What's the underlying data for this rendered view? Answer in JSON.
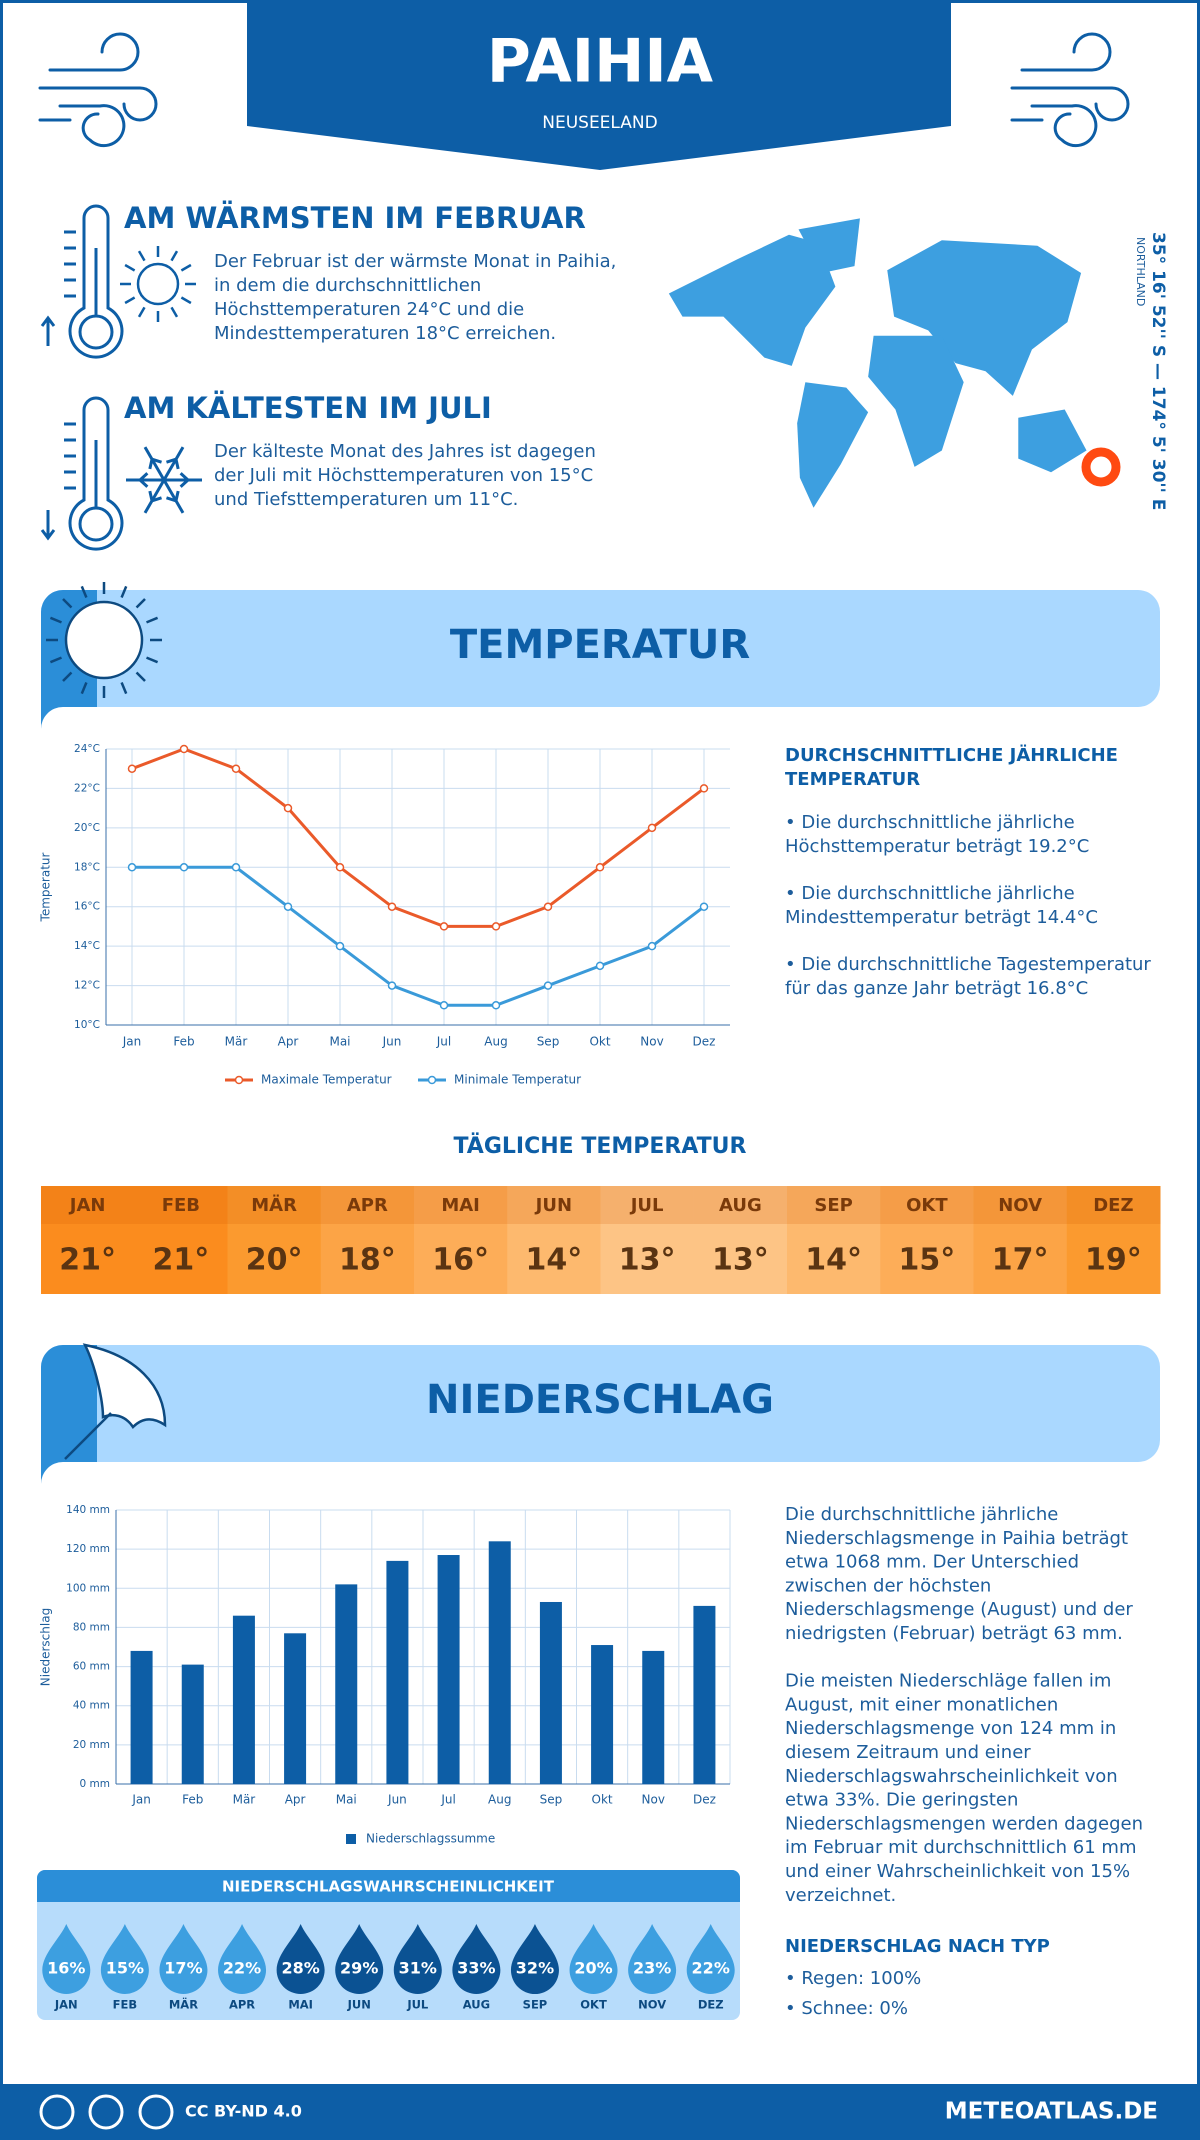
{
  "header": {
    "title": "PAIHIA",
    "subtitle": "NEUSEELAND"
  },
  "highlights": [
    {
      "title": "AM WÄRMSTEN IM FEBRUAR",
      "lines": [
        "Der Februar ist der wärmste Monat in Paihia,",
        "in dem die durchschnittlichen",
        "Höchsttemperaturen 24°C und die",
        "Mindesttemperaturen 18°C erreichen."
      ]
    },
    {
      "title": "AM KÄLTESTEN IM JULI",
      "lines": [
        "Der kälteste Monat des Jahres ist dagegen",
        "der Juli mit Höchsttemperaturen von 15°C",
        "und Tiefsttemperaturen um 11°C."
      ]
    }
  ],
  "location": {
    "coordinates": "35° 16' 52'' S — 174° 5' 30'' E",
    "region": "NORTHLAND"
  },
  "temperature_section": {
    "title": "TEMPERATUR",
    "summary_title": [
      "DURCHSCHNITTLICHE JÄHRLICHE",
      "TEMPERATUR"
    ],
    "items": [
      [
        "• Die durchschnittliche jährliche",
        "Höchsttemperatur beträgt 19.2°C"
      ],
      [
        "• Die durchschnittliche jährliche",
        "Mindesttemperatur beträgt 14.4°C"
      ],
      [
        "• Die durchschnittliche Tagestemperatur",
        "für das ganze Jahr beträgt 16.8°C"
      ]
    ]
  },
  "daily": {
    "title": "TÄGLICHE TEMPERATUR",
    "months": [
      "JAN",
      "FEB",
      "MÄR",
      "APR",
      "MAI",
      "JUN",
      "JUL",
      "AUG",
      "SEP",
      "OKT",
      "NOV",
      "DEZ"
    ],
    "values": [
      21,
      21,
      20,
      18,
      16,
      14,
      13,
      13,
      14,
      15,
      17,
      19
    ],
    "value_labels": [
      "21°",
      "21°",
      "20°",
      "18°",
      "16°",
      "14°",
      "13°",
      "13°",
      "14°",
      "15°",
      "17°",
      "19°"
    ],
    "colors": [
      "#fb8c1e",
      "#fb8c1e",
      "#fb9a2f",
      "#fca446",
      "#fdad58",
      "#fdb96e",
      "#fdc485",
      "#fdc485",
      "#fdb96e",
      "#fdad58",
      "#fca446",
      "#fb9a2f"
    ]
  },
  "precipitation_section": {
    "title": "NIEDERSCHLAG",
    "paragraphs": [
      [
        "Die durchschnittliche jährliche",
        "Niederschlagsmenge in Paihia beträgt",
        "etwa 1068 mm. Der Unterschied",
        "zwischen der höchsten",
        "Niederschlagsmenge (August) und der",
        "niedrigsten (Februar) beträgt 63 mm."
      ],
      [
        "Die meisten Niederschläge fallen im",
        "August, mit einer monatlichen",
        "Niederschlagsmenge von 124 mm in",
        "diesem Zeitraum und einer",
        "Niederschlagswahrscheinlichkeit von",
        "etwa 33%. Die geringsten",
        "Niederschlagsmengen werden dagegen",
        "im Februar mit durchschnittlich 61 mm",
        "und einer Wahrscheinlichkeit von 15%",
        "verzeichnet."
      ]
    ],
    "type_title": "NIEDERSCHLAG NACH TYP",
    "type_items": [
      "• Regen: 100%",
      "• Schnee: 0%"
    ]
  },
  "probability": {
    "title": "NIEDERSCHLAGSWAHRSCHEINLICHKEIT",
    "months": [
      "JAN",
      "FEB",
      "MÄR",
      "APR",
      "MAI",
      "JUN",
      "JUL",
      "AUG",
      "SEP",
      "OKT",
      "NOV",
      "DEZ"
    ],
    "values": [
      16,
      15,
      17,
      22,
      28,
      29,
      31,
      33,
      32,
      20,
      23,
      22
    ],
    "value_labels": [
      "16%",
      "15%",
      "17%",
      "22%",
      "28%",
      "29%",
      "31%",
      "33%",
      "32%",
      "20%",
      "23%",
      "22%"
    ],
    "colors": [
      "#3d9fe0",
      "#3d9fe0",
      "#3d9fe0",
      "#3d9fe0",
      "#0b5293",
      "#0b5293",
      "#0b5293",
      "#0b5293",
      "#0b5293",
      "#3d9fe0",
      "#3d9fe0",
      "#3d9fe0"
    ]
  },
  "footer": {
    "license": "CC BY-ND 4.0",
    "site": "METEOATLAS.DE"
  },
  "chart_data": [
    {
      "type": "line",
      "y_label": "Temperatur",
      "categories": [
        "Jan",
        "Feb",
        "Mär",
        "Apr",
        "Mai",
        "Jun",
        "Jul",
        "Aug",
        "Sep",
        "Okt",
        "Nov",
        "Dez"
      ],
      "series": [
        {
          "name": "Maximale Temperatur",
          "color": "#ea5a2a",
          "values": [
            23,
            24,
            23,
            21,
            18,
            16,
            15,
            15,
            16,
            18,
            20,
            22
          ]
        },
        {
          "name": "Minimale Temperatur",
          "color": "#3a9ad9",
          "values": [
            18,
            18,
            18,
            16,
            14,
            12,
            11,
            11,
            12,
            13,
            14,
            16
          ]
        }
      ],
      "ylim": [
        10,
        24
      ],
      "yticks": [
        {
          "value": 10,
          "label": "10°C"
        },
        {
          "value": 12,
          "label": "12°C"
        },
        {
          "value": 14,
          "label": "14°C"
        },
        {
          "value": 16,
          "label": "16°C"
        },
        {
          "value": 18,
          "label": "18°C"
        },
        {
          "value": 20,
          "label": "20°C"
        },
        {
          "value": 22,
          "label": "22°C"
        },
        {
          "value": 24,
          "label": "24°C"
        }
      ],
      "grid": true,
      "legend": "bottom"
    },
    {
      "type": "bar",
      "y_label": "Niederschlag",
      "categories": [
        "Jan",
        "Feb",
        "Mär",
        "Apr",
        "Mai",
        "Jun",
        "Jul",
        "Aug",
        "Sep",
        "Okt",
        "Nov",
        "Dez"
      ],
      "series": [
        {
          "name": "Niederschlagssumme",
          "color": "#0d5ea6",
          "values": [
            68,
            61,
            86,
            77,
            102,
            114,
            117,
            124,
            93,
            71,
            68,
            91
          ]
        }
      ],
      "ylim": [
        0,
        140
      ],
      "yticks": [
        {
          "value": 0,
          "label": "0 mm"
        },
        {
          "value": 20,
          "label": "20 mm"
        },
        {
          "value": 40,
          "label": "40 mm"
        },
        {
          "value": 60,
          "label": "60 mm"
        },
        {
          "value": 80,
          "label": "80 mm"
        },
        {
          "value": 100,
          "label": "100 mm"
        },
        {
          "value": 120,
          "label": "120 mm"
        },
        {
          "value": 140,
          "label": "140 mm"
        }
      ],
      "grid": true,
      "legend": "bottom"
    }
  ]
}
